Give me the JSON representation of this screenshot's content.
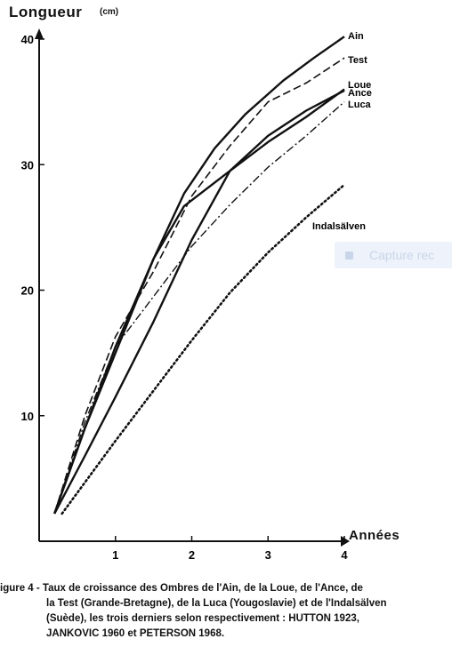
{
  "chart_data": {
    "type": "line",
    "ylabel": "Longueur",
    "yunit": "(cm)",
    "xlabel": "Années",
    "xlim": [
      0,
      4
    ],
    "ylim": [
      0,
      40
    ],
    "xticks": [
      1,
      2,
      3,
      4
    ],
    "yticks": [
      10,
      20,
      30,
      40
    ],
    "grid": false,
    "series": [
      {
        "name": "Ain",
        "style": "solid",
        "x": [
          0.2,
          0.6,
          1.0,
          1.5,
          1.9,
          2.3,
          2.7,
          3.2,
          3.6,
          4.0
        ],
        "y": [
          2.2,
          9.0,
          15.5,
          22.5,
          27.7,
          31.3,
          34.0,
          36.7,
          38.5,
          40.2
        ]
      },
      {
        "name": "Test",
        "style": "dashed",
        "x": [
          0.2,
          0.6,
          1.0,
          1.5,
          2.0,
          2.5,
          3.0,
          3.5,
          4.0
        ],
        "y": [
          2.2,
          10.0,
          16.3,
          21.5,
          27.5,
          31.5,
          35.0,
          36.5,
          38.5
        ]
      },
      {
        "name": "Loue",
        "style": "solid",
        "x": [
          0.2,
          0.6,
          1.0,
          1.5,
          1.9,
          2.5,
          3.0,
          3.5,
          4.0
        ],
        "y": [
          2.2,
          9.0,
          15.0,
          22.5,
          26.7,
          29.5,
          31.8,
          33.8,
          36.0
        ]
      },
      {
        "name": "Ance",
        "style": "solid",
        "x": [
          0.2,
          0.6,
          1.0,
          1.5,
          2.0,
          2.5,
          3.0,
          3.5,
          4.0
        ],
        "y": [
          2.2,
          6.8,
          11.5,
          17.5,
          24.0,
          29.5,
          32.3,
          34.3,
          35.9
        ]
      },
      {
        "name": "Luca",
        "style": "dashdot",
        "x": [
          0.2,
          0.6,
          1.0,
          1.5,
          2.0,
          2.5,
          3.0,
          3.5,
          4.0
        ],
        "y": [
          2.2,
          9.5,
          15.5,
          19.5,
          23.5,
          26.8,
          29.8,
          32.3,
          35.0
        ]
      },
      {
        "name": "Indalsälven",
        "style": "dotted",
        "x": [
          0.3,
          1.0,
          1.5,
          2.0,
          2.5,
          3.0,
          3.5,
          4.0
        ],
        "y": [
          2.2,
          8.0,
          12.0,
          16.0,
          19.8,
          23.0,
          25.8,
          28.4
        ]
      }
    ]
  },
  "caption": {
    "lines": [
      "igure 4 - Taux de croissance des Ombres de l'Ain, de la Loue, de l'Ance, de",
      "la Test (Grande-Bretagne), de la Luca (Yougoslavie) et de l'Indalsälven",
      "(Suède), les trois derniers selon respectivement : HUTTON 1923,",
      "JANKOVIC 1960 et PETERSON 1968."
    ]
  },
  "overlay": {
    "capture_label": "Capture rec"
  }
}
